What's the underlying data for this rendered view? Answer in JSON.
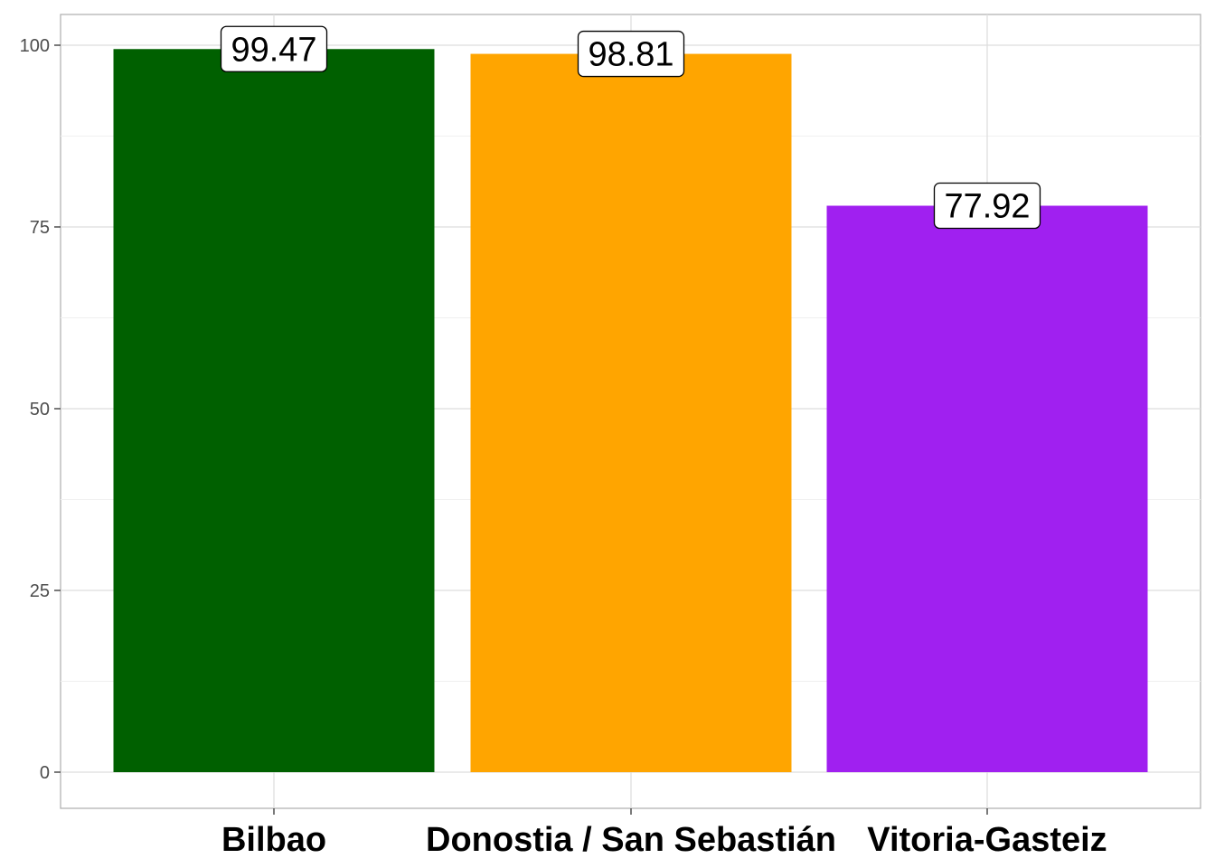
{
  "chart_data": {
    "type": "bar",
    "title": "",
    "xlabel": "",
    "ylabel": "",
    "categories": [
      "Bilbao",
      "Donostia / San Sebastián",
      "Vitoria-Gasteiz"
    ],
    "values": [
      99.47,
      98.81,
      77.92
    ],
    "value_labels": [
      "99.47",
      "98.81",
      "77.92"
    ],
    "colors": [
      "#006000",
      "#FFA500",
      "#A020F0"
    ],
    "ylim": [
      0,
      100
    ],
    "yticks": [
      0,
      25,
      50,
      75,
      100
    ],
    "ytick_labels": [
      "0",
      "25",
      "50",
      "75",
      "100"
    ],
    "grid": true,
    "legend": "none"
  }
}
